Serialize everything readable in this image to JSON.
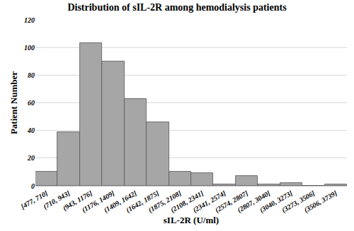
{
  "chart_data": {
    "type": "bar",
    "title": "Distribution of sIL-2R among hemodialysis patients",
    "xlabel": "sIL-2R (U/ml)",
    "ylabel": "Patient Number",
    "categories": [
      "[477, 710]",
      "(710, 943]",
      "(943, 1176]",
      "(1176, 1409]",
      "(1409, 1642]",
      "(1642, 1875]",
      "(1875, 2108]",
      "(2108, 2341]",
      "(2341, 2574]",
      "(2574, 2807]",
      "(2807, 3040]",
      "(3040, 3273]",
      "(3273, 3506]",
      "(3506, 3739]"
    ],
    "values": [
      10,
      39,
      103,
      90,
      63,
      46,
      10,
      9,
      1,
      7,
      1,
      2,
      0,
      1
    ],
    "color": "#a6a6a6",
    "ylim": [
      0,
      120
    ],
    "yticks": [
      0,
      20,
      40,
      60,
      80,
      100,
      120
    ],
    "grid": true
  }
}
